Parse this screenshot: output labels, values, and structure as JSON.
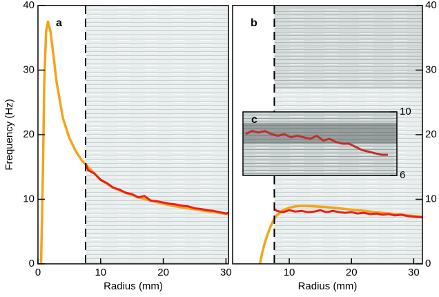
{
  "chart_data": [
    {
      "type": "line",
      "label": "a",
      "xlabel": "Radius (mm)",
      "ylabel": "Frequency (Hz)",
      "xlim": [
        0,
        30.4
      ],
      "ylim": [
        0,
        40
      ],
      "xticks": [
        0,
        10,
        20,
        30
      ],
      "yticks": [
        0,
        10,
        20,
        30,
        40
      ],
      "marker_x": 7.6,
      "series": [
        {
          "color": "#f5a31a",
          "x": [
            0.5,
            0.8,
            1.0,
            1.3,
            1.6,
            2,
            2.5,
            3,
            4,
            5,
            6,
            7,
            8,
            10,
            12,
            14,
            16,
            18,
            20,
            22,
            24,
            26,
            28,
            30.4
          ],
          "values": [
            0,
            15,
            28,
            36,
            37.5,
            36,
            32,
            28,
            22.5,
            19.5,
            17.5,
            16,
            15,
            13,
            11.8,
            11,
            10.3,
            9.8,
            9.3,
            8.9,
            8.6,
            8.3,
            8.0,
            7.7
          ]
        },
        {
          "color": "#e8201a",
          "x": [
            7.6,
            8,
            9,
            10,
            11,
            12,
            13,
            14,
            15,
            16,
            17,
            18,
            19,
            20,
            21,
            22,
            23,
            24,
            25,
            26,
            27,
            28,
            29,
            30,
            30.4
          ],
          "values": [
            15.5,
            14.5,
            14,
            13,
            12.5,
            11.8,
            11.5,
            11,
            10.8,
            10.3,
            10.5,
            9.8,
            9.7,
            9.5,
            9.3,
            9.2,
            9,
            8.9,
            8.6,
            8.5,
            8.3,
            8.2,
            8,
            7.8,
            7.9
          ]
        }
      ]
    },
    {
      "type": "line",
      "label": "b",
      "xlabel": "Radius (mm)",
      "xlim": [
        0.9,
        31.4
      ],
      "ylim": [
        0,
        40
      ],
      "xticks": [
        10,
        20,
        30
      ],
      "yticks": [
        0,
        10,
        20,
        30,
        40
      ],
      "marker_x": 7.6,
      "series": [
        {
          "color": "#f5a31a",
          "x": [
            5.3,
            5.6,
            6,
            6.5,
            7,
            7.5,
            8,
            9,
            10,
            11,
            12,
            14,
            16,
            18,
            20,
            22,
            24,
            26,
            28,
            30,
            31.4
          ],
          "values": [
            0,
            1.5,
            3,
            4.5,
            5.8,
            6.8,
            7.5,
            8.3,
            8.7,
            8.9,
            9,
            8.9,
            8.8,
            8.6,
            8.4,
            8.2,
            8,
            7.8,
            7.6,
            7.4,
            7.3
          ]
        },
        {
          "color": "#e8201a",
          "x": [
            7.6,
            8,
            9,
            10,
            11,
            12,
            13,
            14,
            15,
            16,
            17,
            18,
            19,
            20,
            21,
            22,
            23,
            24,
            25,
            26,
            27,
            28,
            29,
            30,
            31.4
          ],
          "values": [
            8.5,
            8.2,
            8,
            8.3,
            8.1,
            8.2,
            8,
            8.1,
            8.3,
            8,
            8.2,
            8,
            7.9,
            8,
            7.8,
            7.9,
            7.7,
            7.8,
            7.6,
            7.7,
            7.5,
            7.6,
            7.4,
            7.3,
            7.2
          ]
        }
      ]
    },
    {
      "type": "line",
      "label": "c",
      "xlim": [
        7.6,
        31.4
      ],
      "ylim": [
        6,
        10
      ],
      "yticks": [
        6,
        10
      ],
      "series": [
        {
          "color": "#c0302a",
          "x": [
            8,
            9,
            10,
            11,
            12,
            13,
            14,
            15,
            16,
            17,
            18,
            19,
            20,
            21,
            22,
            23,
            24,
            25,
            26,
            27,
            28,
            29,
            30
          ],
          "values": [
            8.6,
            8.8,
            8.7,
            8.8,
            8.6,
            8.5,
            8.6,
            8.4,
            8.5,
            8.4,
            8.3,
            8.5,
            8.2,
            8.3,
            8.1,
            8.0,
            8.0,
            7.8,
            7.6,
            7.5,
            7.4,
            7.3,
            7.3
          ]
        }
      ]
    }
  ]
}
